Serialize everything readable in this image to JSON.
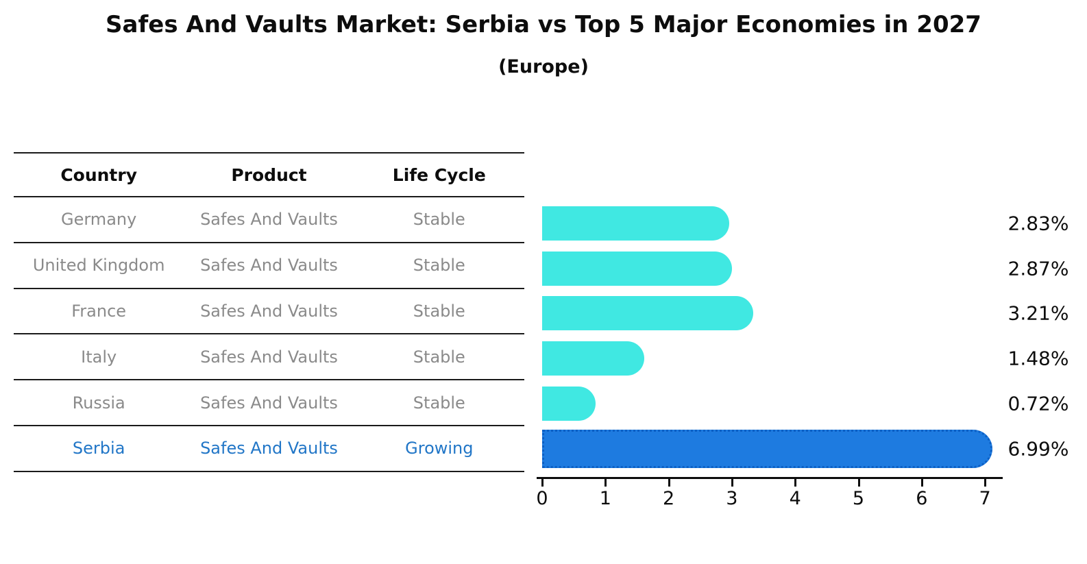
{
  "title": {
    "text": "Safes And Vaults Market: Serbia vs Top 5 Major Economies in 2027",
    "subtitle": "(Europe)"
  },
  "table": {
    "headers": [
      "Country",
      "Product",
      "Life Cycle"
    ],
    "rows": [
      {
        "country": "Germany",
        "product": "Safes And Vaults",
        "life_cycle": "Stable",
        "highlight": false
      },
      {
        "country": "United Kingdom",
        "product": "Safes And Vaults",
        "life_cycle": "Stable",
        "highlight": false
      },
      {
        "country": "France",
        "product": "Safes And Vaults",
        "life_cycle": "Stable",
        "highlight": false
      },
      {
        "country": "Italy",
        "product": "Safes And Vaults",
        "life_cycle": "Stable",
        "highlight": false
      },
      {
        "country": "Russia",
        "product": "Safes And Vaults",
        "life_cycle": "Stable",
        "highlight": false
      },
      {
        "country": "Serbia",
        "product": "Safes And Vaults",
        "life_cycle": "Growing",
        "highlight": true
      }
    ]
  },
  "chart_data": {
    "type": "bar",
    "orientation": "horizontal",
    "title": "Safes And Vaults Market: Serbia vs Top 5 Major Economies in 2027",
    "subtitle": "(Europe)",
    "categories": [
      "Germany",
      "United Kingdom",
      "France",
      "Italy",
      "Russia",
      "Serbia"
    ],
    "values": [
      2.83,
      2.87,
      3.21,
      1.48,
      0.72,
      6.99
    ],
    "value_labels": [
      "2.83%",
      "2.87%",
      "3.21%",
      "1.48%",
      "0.72%",
      "6.99%"
    ],
    "highlight_index": 5,
    "x_ticks": [
      0,
      1,
      2,
      3,
      4,
      5,
      6,
      7
    ],
    "xlim": [
      0,
      7.3
    ],
    "grid": false,
    "legend": "none",
    "bar_color": "#40e8e2",
    "highlight_bar_color": "#1e7be0",
    "highlight_border_color": "#0c5fc4",
    "highlight_text_color": "#2176c7",
    "label_color": "#0d0d0d",
    "muted_text_color": "#8a8a8a"
  }
}
